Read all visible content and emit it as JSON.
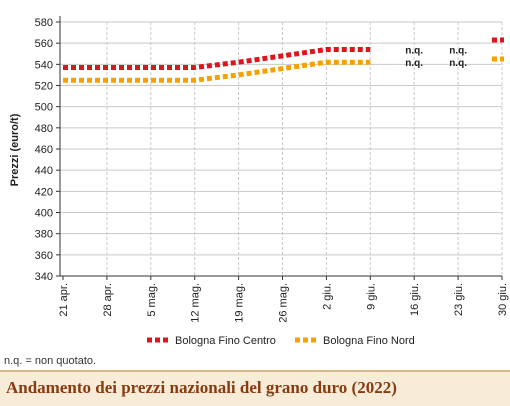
{
  "chart_data": {
    "type": "line",
    "title": "Andamento dei prezzi nazionali del grano duro (2022)",
    "ylabel": "Prezzi (euro/t)",
    "xlabel": "",
    "ylim": [
      340,
      580
    ],
    "yticks": [
      340,
      360,
      380,
      400,
      420,
      440,
      460,
      480,
      500,
      520,
      540,
      560,
      580
    ],
    "categories": [
      "21 apr.",
      "28 apr.",
      "5 mag.",
      "12 mag.",
      "19 mag.",
      "26 mag.",
      "2 giu.",
      "9 giu.",
      "16 giu.",
      "23 giu.",
      "30 giu."
    ],
    "grid": true,
    "legend_position": "bottom",
    "series": [
      {
        "name": "Bologna Fino Centro",
        "color": "#e0141e",
        "values": [
          537,
          537,
          537,
          537,
          542,
          548,
          554,
          554,
          null,
          null,
          563
        ]
      },
      {
        "name": "Bologna Fino Nord",
        "color": "#f5a200",
        "values": [
          525,
          525,
          525,
          525,
          530,
          536,
          542,
          542,
          null,
          null,
          545
        ]
      }
    ],
    "nq_label": "n.q.",
    "nq_categories": [
      "16 giu.",
      "23 giu."
    ]
  },
  "footnote": "n.q. = non quotato."
}
